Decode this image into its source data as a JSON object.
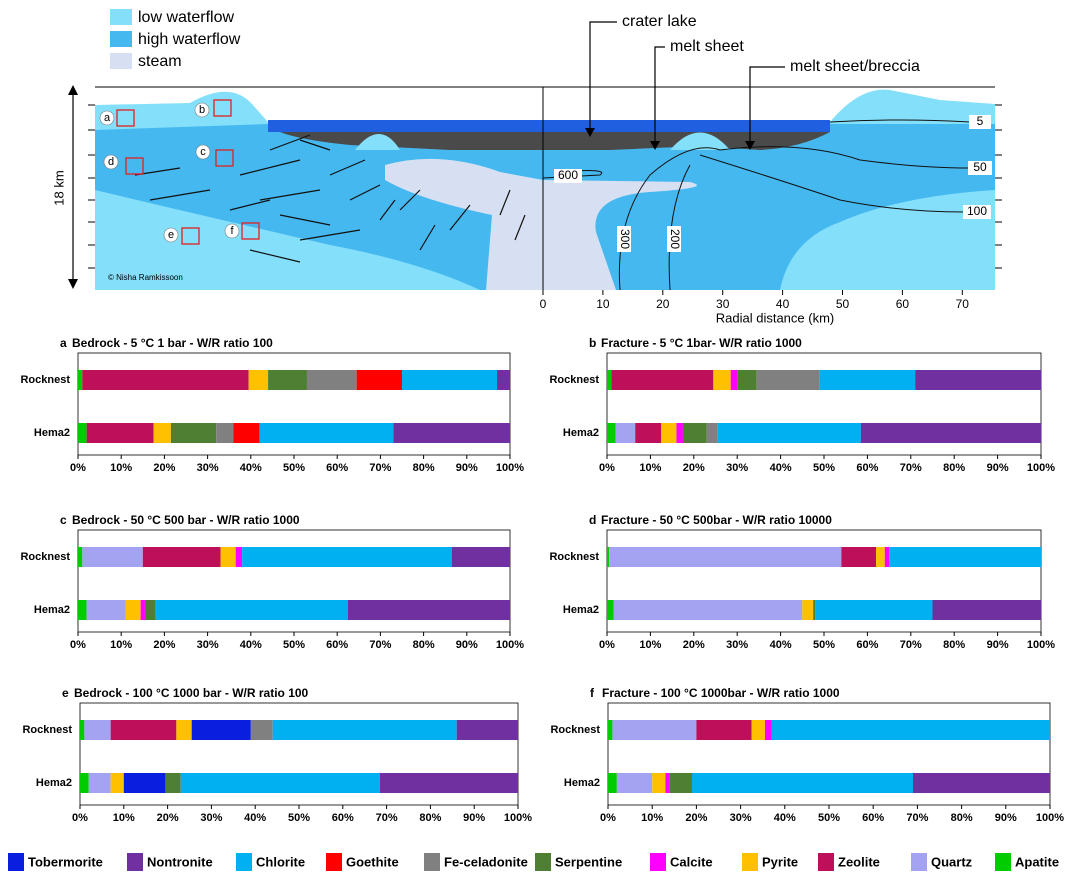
{
  "diagram": {
    "legend": [
      "low waterflow",
      "high waterflow",
      "steam"
    ],
    "callouts": [
      "crater lake",
      "melt sheet",
      "melt sheet/breccia"
    ],
    "depth_label": "18 km",
    "site_labels": [
      "a",
      "b",
      "c",
      "d",
      "e",
      "f"
    ],
    "contours": [
      "5",
      "50",
      "100",
      "600",
      "300",
      "200"
    ],
    "credit": "© Nisha Ramkissoon",
    "xticks": [
      0,
      10,
      20,
      30,
      40,
      50,
      60,
      70
    ],
    "xlabel": "Radial distance (km)"
  },
  "chart_data": [
    {
      "type": "bar",
      "orientation": "horizontal",
      "stacked": true,
      "panel": "a",
      "title": "Bedrock - 5 °C 1 bar - W/R ratio 100",
      "categories": [
        "Rocknest",
        "Hema2"
      ],
      "series": [
        {
          "name": "Apatite",
          "color": "#00cc00",
          "values": [
            1,
            2
          ]
        },
        {
          "name": "Quartz",
          "color": "#a3a3f2",
          "values": [
            0,
            0
          ]
        },
        {
          "name": "Zeolite",
          "color": "#be0f5a",
          "values": [
            38.5,
            15.5
          ]
        },
        {
          "name": "Pyrite",
          "color": "#ffc000",
          "values": [
            4.5,
            4
          ]
        },
        {
          "name": "Calcite",
          "color": "#ff00ff",
          "values": [
            0,
            0
          ]
        },
        {
          "name": "Tobermorite",
          "color": "#0a1ee0",
          "values": [
            0,
            0
          ]
        },
        {
          "name": "Serpentine",
          "color": "#4f7f32",
          "values": [
            9,
            10.5
          ]
        },
        {
          "name": "Fe-celadonite",
          "color": "#808080",
          "values": [
            11.5,
            4
          ]
        },
        {
          "name": "Goethite",
          "color": "#ff0000",
          "values": [
            10.5,
            6
          ]
        },
        {
          "name": "Chlorite",
          "color": "#00b0f0",
          "values": [
            22,
            31
          ]
        },
        {
          "name": "Nontronite",
          "color": "#7030a0",
          "values": [
            3,
            27
          ]
        }
      ],
      "xlim": [
        0,
        100
      ],
      "xticks": [
        {
          "value": 0,
          "label": "0%"
        },
        {
          "value": 10,
          "label": "10%"
        },
        {
          "value": 20,
          "label": "20%"
        },
        {
          "value": 30,
          "label": "30%"
        },
        {
          "value": 40,
          "label": "40%"
        },
        {
          "value": 50,
          "label": "50%"
        },
        {
          "value": 60,
          "label": "60%"
        },
        {
          "value": 70,
          "label": "70%"
        },
        {
          "value": 80,
          "label": "80%"
        },
        {
          "value": 90,
          "label": "90%"
        },
        {
          "value": 100,
          "label": "100%"
        }
      ]
    },
    {
      "type": "bar",
      "orientation": "horizontal",
      "stacked": true,
      "panel": "b",
      "title": "Fracture - 5 °C 1bar- W/R ratio 1000",
      "categories": [
        "Rocknest",
        "Hema2"
      ],
      "series": [
        {
          "name": "Apatite",
          "color": "#00cc00",
          "values": [
            1,
            2
          ]
        },
        {
          "name": "Quartz",
          "color": "#a3a3f2",
          "values": [
            0,
            4.5
          ]
        },
        {
          "name": "Zeolite",
          "color": "#be0f5a",
          "values": [
            23.5,
            6
          ]
        },
        {
          "name": "Pyrite",
          "color": "#ffc000",
          "values": [
            4,
            3.5
          ]
        },
        {
          "name": "Calcite",
          "color": "#ff00ff",
          "values": [
            1.5,
            1.5
          ]
        },
        {
          "name": "Tobermorite",
          "color": "#0a1ee0",
          "values": [
            0,
            0
          ]
        },
        {
          "name": "Serpentine",
          "color": "#4f7f32",
          "values": [
            4.5,
            5.5
          ]
        },
        {
          "name": "Fe-celadonite",
          "color": "#808080",
          "values": [
            14.5,
            2.5
          ]
        },
        {
          "name": "Goethite",
          "color": "#ff0000",
          "values": [
            0,
            0
          ]
        },
        {
          "name": "Chlorite",
          "color": "#00b0f0",
          "values": [
            22,
            33
          ]
        },
        {
          "name": "Nontronite",
          "color": "#7030a0",
          "values": [
            29,
            41.5
          ]
        }
      ],
      "xlim": [
        0,
        100
      ],
      "xticks": [
        {
          "value": 0,
          "label": "0%"
        },
        {
          "value": 10,
          "label": "10%"
        },
        {
          "value": 20,
          "label": "20%"
        },
        {
          "value": 30,
          "label": "30%"
        },
        {
          "value": 40,
          "label": "40%"
        },
        {
          "value": 50,
          "label": "50%"
        },
        {
          "value": 60,
          "label": "60%"
        },
        {
          "value": 70,
          "label": "70%"
        },
        {
          "value": 80,
          "label": "80%"
        },
        {
          "value": 90,
          "label": "90%"
        },
        {
          "value": 100,
          "label": "100%"
        }
      ]
    },
    {
      "type": "bar",
      "orientation": "horizontal",
      "stacked": true,
      "panel": "c",
      "title": "Bedrock - 50 °C 500 bar - W/R ratio 1000",
      "categories": [
        "Rocknest",
        "Hema2"
      ],
      "series": [
        {
          "name": "Apatite",
          "color": "#00cc00",
          "values": [
            1,
            2
          ]
        },
        {
          "name": "Quartz",
          "color": "#a3a3f2",
          "values": [
            14,
            9
          ]
        },
        {
          "name": "Zeolite",
          "color": "#be0f5a",
          "values": [
            18,
            0
          ]
        },
        {
          "name": "Pyrite",
          "color": "#ffc000",
          "values": [
            3.5,
            3.5
          ]
        },
        {
          "name": "Calcite",
          "color": "#ff00ff",
          "values": [
            1.5,
            1
          ]
        },
        {
          "name": "Tobermorite",
          "color": "#0a1ee0",
          "values": [
            0,
            0
          ]
        },
        {
          "name": "Serpentine",
          "color": "#4f7f32",
          "values": [
            0,
            2.5
          ]
        },
        {
          "name": "Fe-celadonite",
          "color": "#808080",
          "values": [
            0,
            0
          ]
        },
        {
          "name": "Goethite",
          "color": "#ff0000",
          "values": [
            0,
            0
          ]
        },
        {
          "name": "Chlorite",
          "color": "#00b0f0",
          "values": [
            48.5,
            44.5
          ]
        },
        {
          "name": "Nontronite",
          "color": "#7030a0",
          "values": [
            13.5,
            37.5
          ]
        }
      ],
      "xlim": [
        0,
        100
      ],
      "xticks": [
        {
          "value": 0,
          "label": "0%"
        },
        {
          "value": 10,
          "label": "10%"
        },
        {
          "value": 20,
          "label": "20%"
        },
        {
          "value": 30,
          "label": "30%"
        },
        {
          "value": 40,
          "label": "40%"
        },
        {
          "value": 50,
          "label": "50%"
        },
        {
          "value": 60,
          "label": "60%"
        },
        {
          "value": 70,
          "label": "70%"
        },
        {
          "value": 80,
          "label": "80%"
        },
        {
          "value": 90,
          "label": "90%"
        },
        {
          "value": 100,
          "label": "100%"
        }
      ]
    },
    {
      "type": "bar",
      "orientation": "horizontal",
      "stacked": true,
      "panel": "d",
      "title": "Fracture - 50 °C 500bar - W/R ratio 10000",
      "categories": [
        "Rocknest",
        "Hema2"
      ],
      "series": [
        {
          "name": "Apatite",
          "color": "#00cc00",
          "values": [
            0.5,
            1.5
          ]
        },
        {
          "name": "Quartz",
          "color": "#a3a3f2",
          "values": [
            53.5,
            43.5
          ]
        },
        {
          "name": "Zeolite",
          "color": "#be0f5a",
          "values": [
            8,
            0
          ]
        },
        {
          "name": "Pyrite",
          "color": "#ffc000",
          "values": [
            2,
            2.5
          ]
        },
        {
          "name": "Calcite",
          "color": "#ff00ff",
          "values": [
            1,
            0
          ]
        },
        {
          "name": "Tobermorite",
          "color": "#0a1ee0",
          "values": [
            0,
            0
          ]
        },
        {
          "name": "Serpentine",
          "color": "#4f7f32",
          "values": [
            0,
            0.5
          ]
        },
        {
          "name": "Fe-celadonite",
          "color": "#808080",
          "values": [
            0,
            0
          ]
        },
        {
          "name": "Goethite",
          "color": "#ff0000",
          "values": [
            0,
            0
          ]
        },
        {
          "name": "Chlorite",
          "color": "#00b0f0",
          "values": [
            35,
            27
          ]
        },
        {
          "name": "Nontronite",
          "color": "#7030a0",
          "values": [
            0,
            25
          ]
        }
      ],
      "xlim": [
        0,
        100
      ],
      "xticks": [
        {
          "value": 0,
          "label": "0%"
        },
        {
          "value": 10,
          "label": "10%"
        },
        {
          "value": 20,
          "label": "20%"
        },
        {
          "value": 30,
          "label": "30%"
        },
        {
          "value": 40,
          "label": "40%"
        },
        {
          "value": 50,
          "label": "50%"
        },
        {
          "value": 60,
          "label": "60%"
        },
        {
          "value": 70,
          "label": "70%"
        },
        {
          "value": 80,
          "label": "80%"
        },
        {
          "value": 90,
          "label": "90%"
        },
        {
          "value": 100,
          "label": "100%"
        }
      ]
    },
    {
      "type": "bar",
      "orientation": "horizontal",
      "stacked": true,
      "panel": "e",
      "title": "Bedrock - 100 °C 1000 bar - W/R ratio 100",
      "categories": [
        "Rocknest",
        "Hema2"
      ],
      "series": [
        {
          "name": "Apatite",
          "color": "#00cc00",
          "values": [
            1,
            2
          ]
        },
        {
          "name": "Quartz",
          "color": "#a3a3f2",
          "values": [
            6,
            5
          ]
        },
        {
          "name": "Zeolite",
          "color": "#be0f5a",
          "values": [
            15,
            0
          ]
        },
        {
          "name": "Pyrite",
          "color": "#ffc000",
          "values": [
            3.5,
            3
          ]
        },
        {
          "name": "Calcite",
          "color": "#ff00ff",
          "values": [
            0,
            0
          ]
        },
        {
          "name": "Tobermorite",
          "color": "#0a1ee0",
          "values": [
            13.5,
            9.5
          ]
        },
        {
          "name": "Serpentine",
          "color": "#4f7f32",
          "values": [
            0,
            3.5
          ]
        },
        {
          "name": "Fe-celadonite",
          "color": "#808080",
          "values": [
            5,
            0
          ]
        },
        {
          "name": "Goethite",
          "color": "#ff0000",
          "values": [
            0,
            0
          ]
        },
        {
          "name": "Chlorite",
          "color": "#00b0f0",
          "values": [
            42,
            45.5
          ]
        },
        {
          "name": "Nontronite",
          "color": "#7030a0",
          "values": [
            14,
            31.5
          ]
        }
      ],
      "xlim": [
        0,
        100
      ],
      "xticks": [
        {
          "value": 0,
          "label": "0%"
        },
        {
          "value": 10,
          "label": "10%"
        },
        {
          "value": 20,
          "label": "20%"
        },
        {
          "value": 30,
          "label": "30%"
        },
        {
          "value": 40,
          "label": "40%"
        },
        {
          "value": 50,
          "label": "50%"
        },
        {
          "value": 60,
          "label": "60%"
        },
        {
          "value": 70,
          "label": "70%"
        },
        {
          "value": 80,
          "label": "80%"
        },
        {
          "value": 90,
          "label": "90%"
        },
        {
          "value": 100,
          "label": "100%"
        }
      ]
    },
    {
      "type": "bar",
      "orientation": "horizontal",
      "stacked": true,
      "panel": "f",
      "title": "Fracture - 100 °C 1000bar - W/R ratio 1000",
      "categories": [
        "Rocknest",
        "Hema2"
      ],
      "series": [
        {
          "name": "Apatite",
          "color": "#00cc00",
          "values": [
            1,
            2
          ]
        },
        {
          "name": "Quartz",
          "color": "#a3a3f2",
          "values": [
            19,
            8
          ]
        },
        {
          "name": "Zeolite",
          "color": "#be0f5a",
          "values": [
            12.5,
            0
          ]
        },
        {
          "name": "Pyrite",
          "color": "#ffc000",
          "values": [
            3,
            3
          ]
        },
        {
          "name": "Calcite",
          "color": "#ff00ff",
          "values": [
            1.5,
            1
          ]
        },
        {
          "name": "Tobermorite",
          "color": "#0a1ee0",
          "values": [
            0,
            0
          ]
        },
        {
          "name": "Serpentine",
          "color": "#4f7f32",
          "values": [
            0,
            5
          ]
        },
        {
          "name": "Fe-celadonite",
          "color": "#808080",
          "values": [
            0,
            0
          ]
        },
        {
          "name": "Goethite",
          "color": "#ff0000",
          "values": [
            0,
            0
          ]
        },
        {
          "name": "Chlorite",
          "color": "#00b0f0",
          "values": [
            63,
            50
          ]
        },
        {
          "name": "Nontronite",
          "color": "#7030a0",
          "values": [
            0,
            31
          ]
        }
      ],
      "xlim": [
        0,
        100
      ],
      "xticks": [
        {
          "value": 0,
          "label": "0%"
        },
        {
          "value": 10,
          "label": "10%"
        },
        {
          "value": 20,
          "label": "20%"
        },
        {
          "value": 30,
          "label": "30%"
        },
        {
          "value": 40,
          "label": "40%"
        },
        {
          "value": 50,
          "label": "50%"
        },
        {
          "value": 60,
          "label": "60%"
        },
        {
          "value": 70,
          "label": "70%"
        },
        {
          "value": 80,
          "label": "80%"
        },
        {
          "value": 90,
          "label": "90%"
        },
        {
          "value": 100,
          "label": "100%"
        }
      ]
    }
  ]
}
